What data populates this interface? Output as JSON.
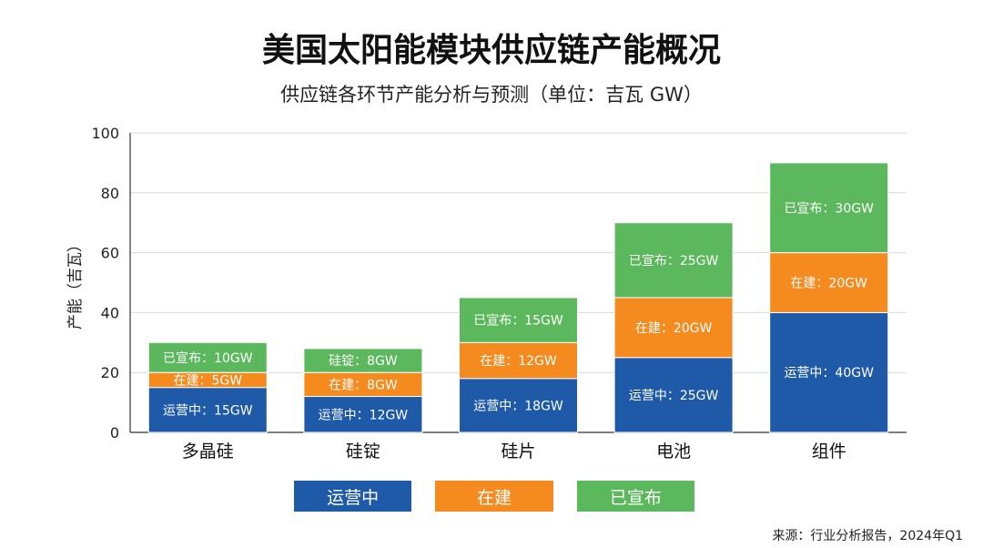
{
  "header": {
    "title": "美国太阳能模块供应链产能概况",
    "subtitle": "供应链各环节产能分析与预测（单位：吉瓦 GW）"
  },
  "footer": {
    "source": "来源：行业分析报告，2024年Q1"
  },
  "colors": {
    "operating": "#1f5aa8",
    "building": "#f58a1f",
    "announced": "#5cb85c"
  },
  "chart_data": {
    "type": "bar",
    "stacked": true,
    "title": "美国太阳能模块供应链产能概况",
    "subtitle": "供应链各环节产能分析与预测（单位：吉瓦 GW）",
    "xlabel": "",
    "ylabel": "产能（吉瓦）",
    "ylim": [
      0,
      100
    ],
    "yticks": [
      0,
      20,
      40,
      60,
      80,
      100
    ],
    "grid": true,
    "legend": "bottom",
    "categories": [
      "多晶硅",
      "硅锭",
      "硅片",
      "电池",
      "组件"
    ],
    "series": [
      {
        "name": "运营中",
        "color": "#1f5aa8",
        "values": [
          15,
          12,
          18,
          25,
          40
        ],
        "labels": [
          "运营中：15GW",
          "运营中：12GW",
          "运营中：18GW",
          "运营中：25GW",
          "运营中：40GW"
        ]
      },
      {
        "name": "在建",
        "color": "#f58a1f",
        "values": [
          5,
          8,
          12,
          20,
          20
        ],
        "labels": [
          "在建：5GW",
          "在建：8GW",
          "在建：12GW",
          "在建：20GW",
          "在建：20GW"
        ]
      },
      {
        "name": "已宣布",
        "color": "#5cb85c",
        "values": [
          10,
          8,
          15,
          25,
          30
        ],
        "labels": [
          "已宣布：10GW",
          "硅锭：8GW",
          "已宣布：15GW",
          "已宣布：25GW",
          "已宣布：30GW"
        ]
      }
    ]
  }
}
